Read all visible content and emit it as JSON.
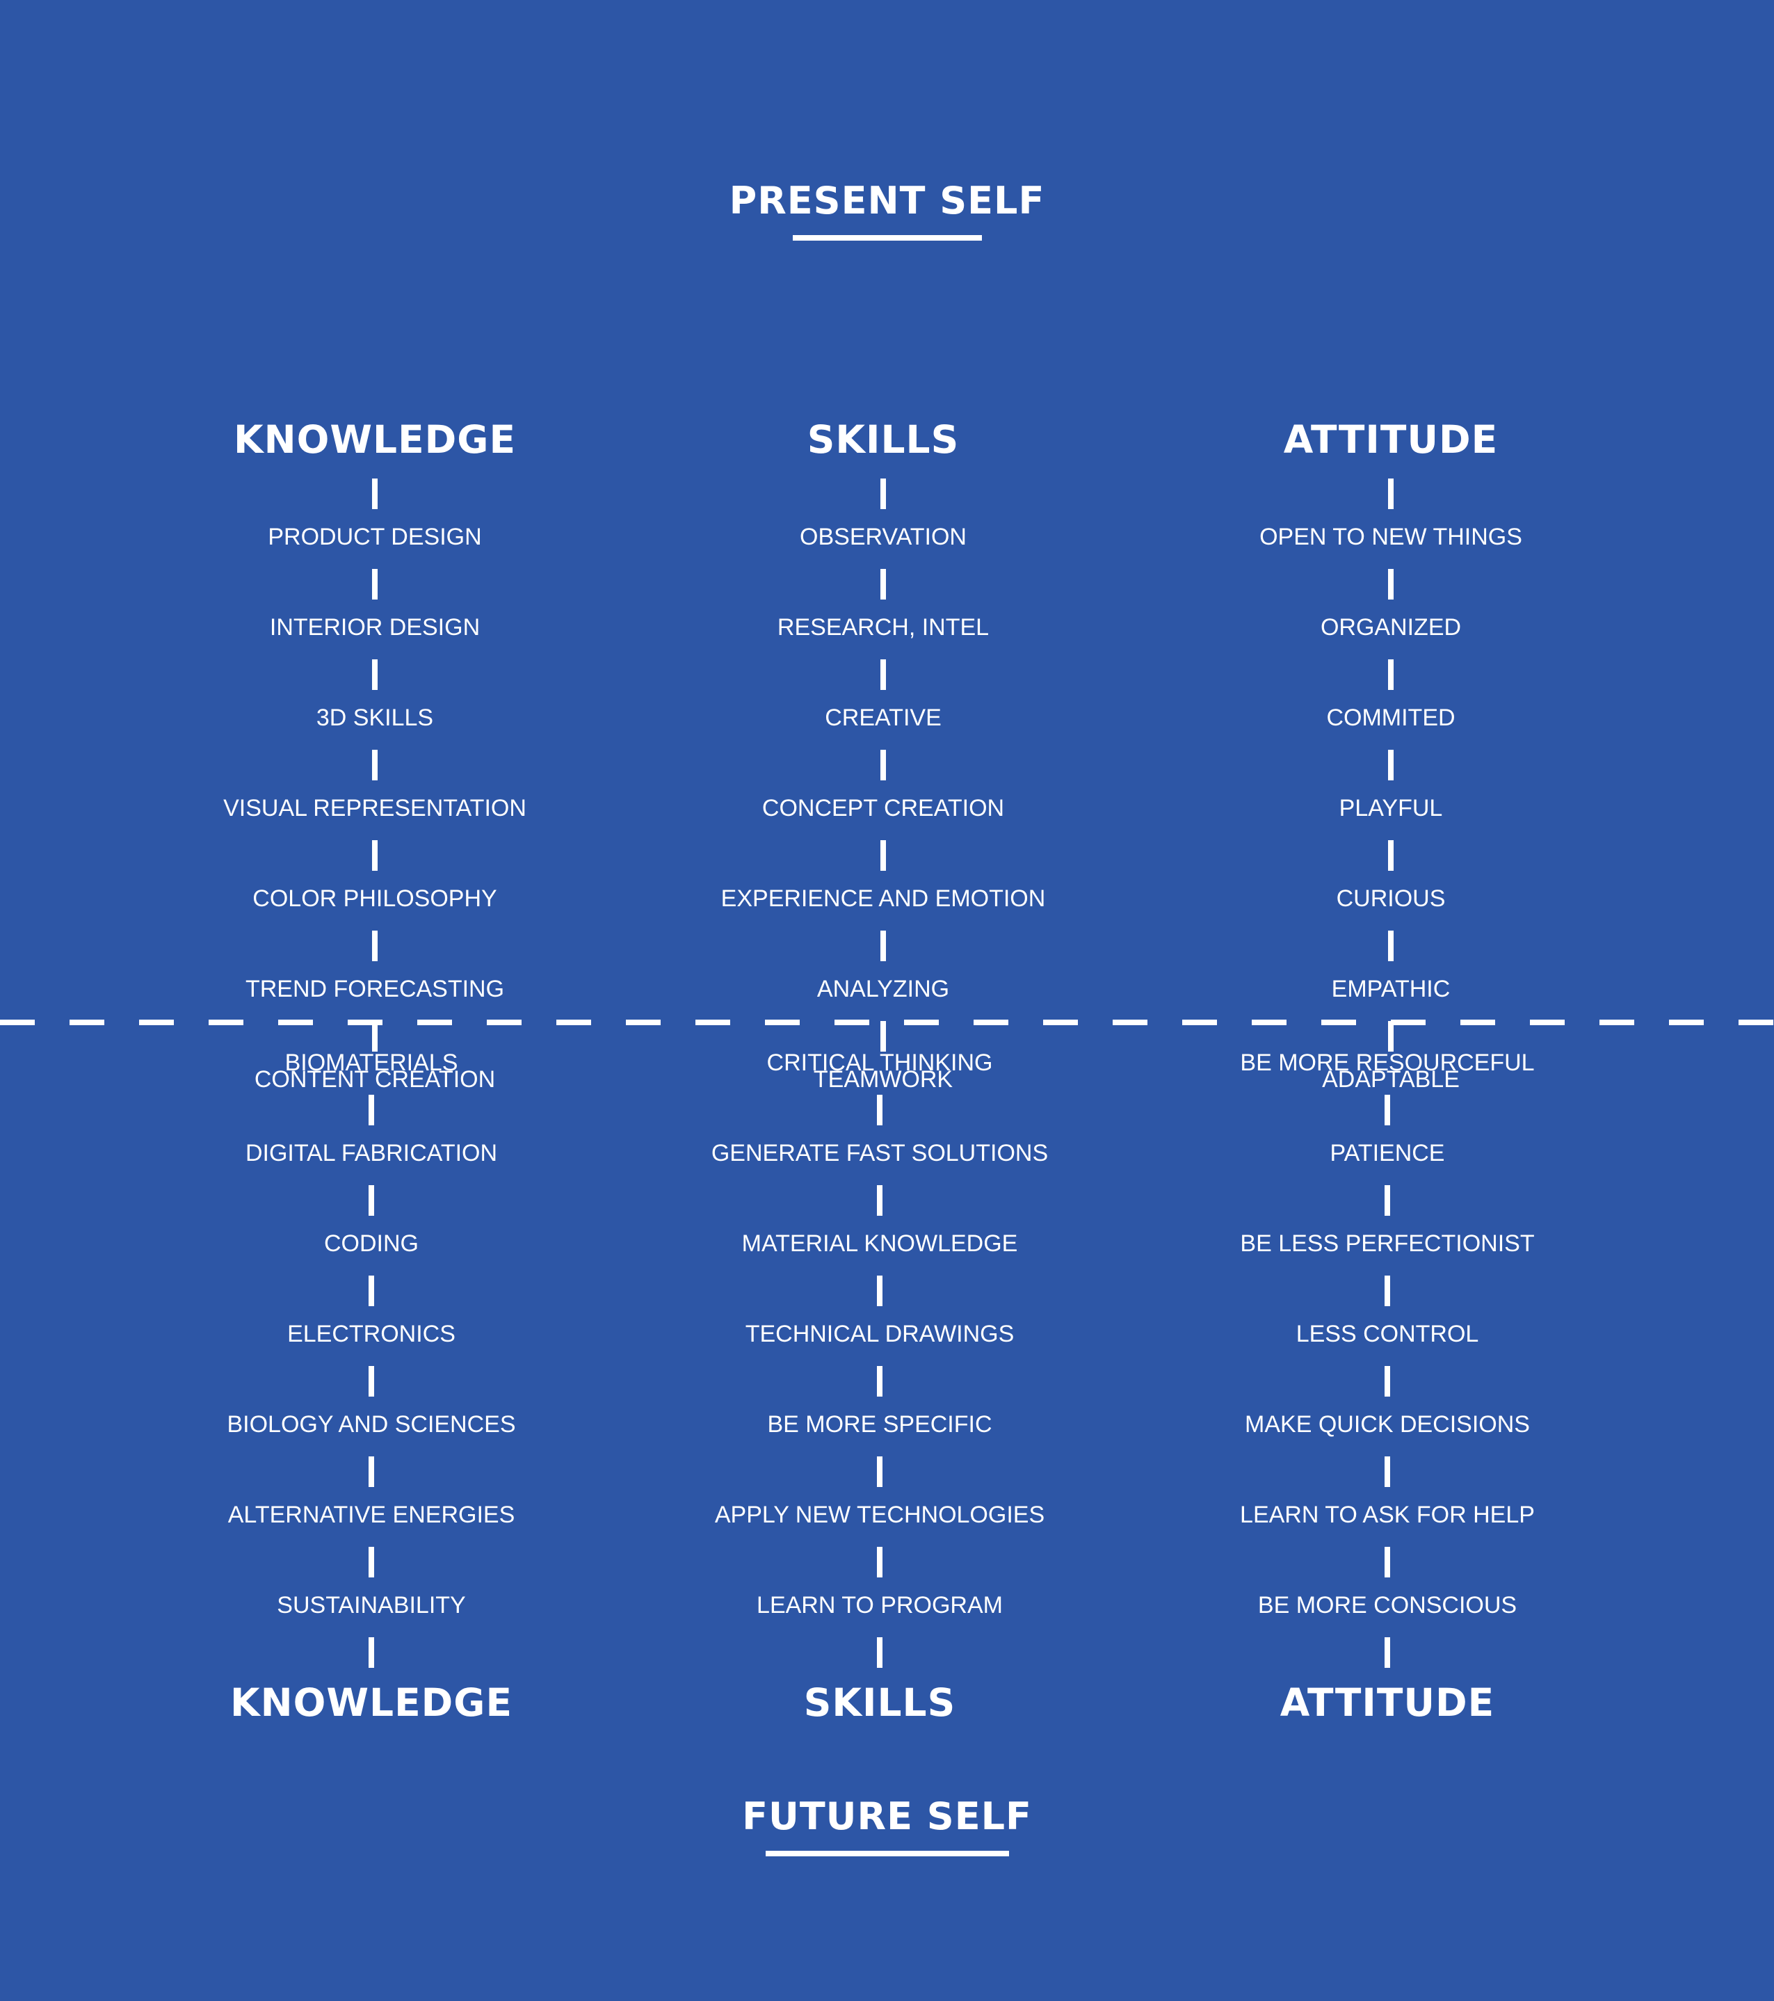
{
  "present": {
    "title": "PRESENT SELF",
    "columns": [
      {
        "heading": "KNOWLEDGE",
        "items": [
          "PRODUCT DESIGN",
          "INTERIOR DESIGN",
          "3D SKILLS",
          "VISUAL REPRESENTATION",
          "COLOR PHILOSOPHY",
          "TREND FORECASTING",
          "CONTENT CREATION"
        ]
      },
      {
        "heading": "SKILLS",
        "items": [
          "OBSERVATION",
          "RESEARCH, INTEL",
          "CREATIVE",
          "CONCEPT CREATION",
          "EXPERIENCE AND EMOTION",
          "ANALYZING",
          "TEAMWORK"
        ]
      },
      {
        "heading": "ATTITUDE",
        "items": [
          "OPEN TO NEW THINGS",
          "ORGANIZED",
          "COMMITED",
          "PLAYFUL",
          "CURIOUS",
          "EMPATHIC",
          "ADAPTABLE"
        ]
      }
    ]
  },
  "future": {
    "title": "FUTURE SELF",
    "columns": [
      {
        "heading": "KNOWLEDGE",
        "items": [
          "BIOMATERIALS",
          "DIGITAL FABRICATION",
          "CODING",
          "ELECTRONICS",
          "BIOLOGY AND SCIENCES",
          "ALTERNATIVE ENERGIES",
          "SUSTAINABILITY"
        ]
      },
      {
        "heading": "SKILLS",
        "items": [
          "CRITICAL THINKING",
          "GENERATE FAST SOLUTIONS",
          "MATERIAL KNOWLEDGE",
          "TECHNICAL DRAWINGS",
          "BE MORE SPECIFIC",
          "APPLY NEW TECHNOLOGIES",
          "LEARN TO PROGRAM"
        ]
      },
      {
        "heading": "ATTITUDE",
        "items": [
          "BE MORE RESOURCEFUL",
          "PATIENCE",
          "BE LESS PERFECTIONIST",
          "LESS CONTROL",
          "MAKE QUICK DECISIONS",
          "LEARN TO ASK FOR HELP",
          "BE MORE CONSCIOUS"
        ]
      }
    ]
  },
  "colors": {
    "background": "#2d56a6",
    "foreground": "#ffffff"
  }
}
